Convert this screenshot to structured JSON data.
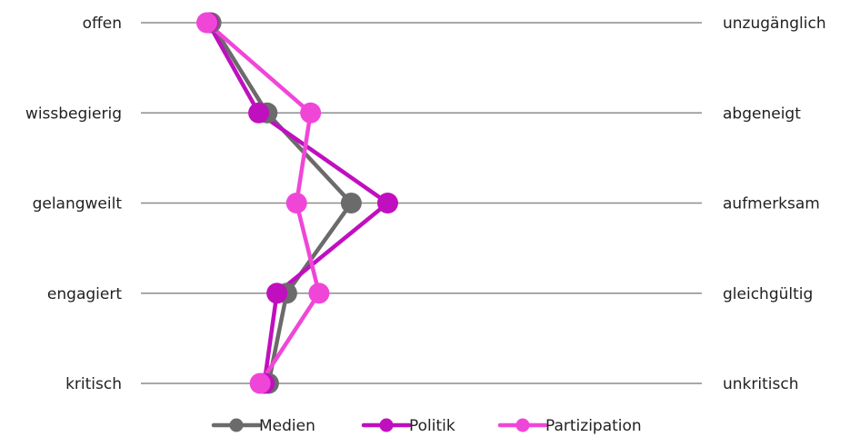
{
  "chart_data": {
    "type": "line",
    "orientation": "horizontal-profile",
    "left_labels": [
      "offen",
      "wissbegierig",
      "gelangweilt",
      "engagiert",
      "kritisch"
    ],
    "right_labels": [
      "unzugänglich",
      "abgeneigt",
      "aufmerksam",
      "gleichgültig",
      "unkritisch"
    ],
    "xlim": [
      1,
      5
    ],
    "series": [
      {
        "name": "Medien",
        "color": "#6b6b6b",
        "values": [
          1.5,
          1.9,
          2.5,
          2.04,
          1.91
        ]
      },
      {
        "name": "Politik",
        "color": "#c00fbf",
        "values": [
          1.48,
          1.84,
          2.76,
          1.97,
          1.88
        ]
      },
      {
        "name": "Partizipation",
        "color": "#f046d8",
        "values": [
          1.47,
          2.21,
          2.11,
          2.27,
          1.85
        ]
      }
    ],
    "legend_position": "bottom",
    "grid": true
  }
}
